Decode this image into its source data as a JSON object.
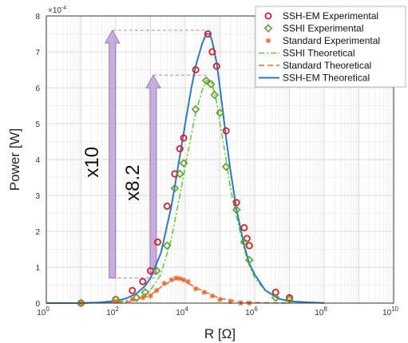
{
  "chart_data": {
    "type": "scatter",
    "xlabel": "R [Ω]",
    "ylabel": "Power [W]",
    "x_scale": "log",
    "xlim": [
      1,
      10000000000
    ],
    "ylim": [
      0,
      0.0008
    ],
    "grid": true,
    "legend_position": "top-right",
    "x_ticks": [
      {
        "value": 1,
        "base": "10",
        "exp": "0"
      },
      {
        "value": 100,
        "base": "10",
        "exp": "2"
      },
      {
        "value": 10000,
        "base": "10",
        "exp": "4"
      },
      {
        "value": 1000000,
        "base": "10",
        "exp": "6"
      },
      {
        "value": 100000000,
        "base": "10",
        "exp": "8"
      },
      {
        "value": 10000000000,
        "base": "10",
        "exp": "10"
      }
    ],
    "y_ticks": [
      {
        "value": 0,
        "label": "0"
      },
      {
        "value": 0.0001,
        "label": "1"
      },
      {
        "value": 0.0002,
        "label": "2"
      },
      {
        "value": 0.0003,
        "label": "3"
      },
      {
        "value": 0.0004,
        "label": "4"
      },
      {
        "value": 0.0005,
        "label": "5"
      },
      {
        "value": 0.0006,
        "label": "6"
      },
      {
        "value": 0.0007,
        "label": "7"
      },
      {
        "value": 0.0008,
        "label": "8"
      }
    ],
    "y_multiplier": {
      "base": "×10",
      "exp": "-4"
    },
    "annotations": [
      {
        "text": "x10",
        "from": 7e-05,
        "to": 0.00076,
        "x": 80
      },
      {
        "text": "x8.2",
        "from": 8e-05,
        "to": 0.000635,
        "x": 1200
      }
    ],
    "series": [
      {
        "name": "SSH-EM Experimental",
        "kind": "markers",
        "marker": "circle",
        "color": "#e0191f",
        "points": [
          [
            10,
            0.0
          ],
          [
            100,
            1e-05
          ],
          [
            300,
            3.5e-05
          ],
          [
            600,
            6e-05
          ],
          [
            1000,
            9e-05
          ],
          [
            1600,
            0.00017
          ],
          [
            3000,
            0.00027
          ],
          [
            5000,
            0.00036
          ],
          [
            7000,
            0.00043
          ],
          [
            9000,
            0.00046
          ],
          [
            20000,
            0.00065
          ],
          [
            45000,
            0.00075
          ],
          [
            60000,
            0.0007
          ],
          [
            80000,
            0.00066
          ],
          [
            150000,
            0.00048
          ],
          [
            300000,
            0.00028
          ],
          [
            500000,
            0.00021
          ],
          [
            600000,
            0.00018
          ],
          [
            700000,
            0.00016
          ],
          [
            4000000,
            3e-05
          ],
          [
            10000000,
            1.5e-05
          ]
        ]
      },
      {
        "name": "SSHI Experimental",
        "kind": "markers",
        "marker": "diamond",
        "color": "#5fa030",
        "points": [
          [
            10,
            0.0
          ],
          [
            100,
            1e-05
          ],
          [
            400,
            1.5e-05
          ],
          [
            700,
            3e-05
          ],
          [
            1500,
            9e-05
          ],
          [
            3000,
            0.00016
          ],
          [
            5000,
            0.00032
          ],
          [
            7000,
            0.00036
          ],
          [
            9000,
            0.00039
          ],
          [
            20000,
            0.00054
          ],
          [
            40000,
            0.00062
          ],
          [
            55000,
            0.00061
          ],
          [
            70000,
            0.00058
          ],
          [
            100000,
            0.00053
          ],
          [
            150000,
            0.00038
          ],
          [
            300000,
            0.00026
          ],
          [
            500000,
            0.00017
          ],
          [
            700000,
            0.00012
          ],
          [
            4000000,
            1.5e-05
          ],
          [
            10000000,
            1e-05
          ]
        ]
      },
      {
        "name": "Standard Experimental",
        "kind": "markers",
        "marker": "star",
        "color": "#ea6a2f",
        "points": [
          [
            10,
            0.0
          ],
          [
            100,
            5e-06
          ],
          [
            300,
            1e-05
          ],
          [
            600,
            1.5e-05
          ],
          [
            1000,
            2e-05
          ],
          [
            1500,
            3.5e-05
          ],
          [
            2500,
            5.5e-05
          ],
          [
            4000,
            6.5e-05
          ],
          [
            5500,
            7e-05
          ],
          [
            7000,
            6.8e-05
          ],
          [
            9000,
            6.5e-05
          ],
          [
            12000,
            6e-05
          ],
          [
            20000,
            4e-05
          ],
          [
            35000,
            3e-05
          ],
          [
            60000,
            2e-05
          ],
          [
            100000,
            1e-05
          ],
          [
            200000,
            5e-06
          ],
          [
            400000,
            0.0
          ],
          [
            700000,
            0.0
          ]
        ]
      },
      {
        "name": "SSHI Theoretical",
        "kind": "line",
        "dash": "7,3,2,3",
        "color": "#5bd22e",
        "points": [
          [
            1,
            0.0
          ],
          [
            10,
            1e-07
          ],
          [
            30,
            5e-07
          ],
          [
            100,
            3e-06
          ],
          [
            200,
            7e-06
          ],
          [
            400,
            1.4e-05
          ],
          [
            700,
            2.5e-05
          ],
          [
            1000,
            3.6e-05
          ],
          [
            2000,
            8e-05
          ],
          [
            4000,
            0.00018
          ],
          [
            7000,
            0.0003
          ],
          [
            10000,
            0.00038
          ],
          [
            15000,
            0.00047
          ],
          [
            20000,
            0.00053
          ],
          [
            30000,
            0.00059
          ],
          [
            40000,
            0.00062
          ],
          [
            50000,
            0.00062
          ],
          [
            60000,
            0.00061
          ],
          [
            80000,
            0.00056
          ],
          [
            100000,
            0.0005
          ],
          [
            150000,
            0.0004
          ],
          [
            200000,
            0.00032
          ],
          [
            300000,
            0.00024
          ],
          [
            500000,
            0.00015
          ],
          [
            700000,
            0.000105
          ],
          [
            1000000,
            7e-05
          ],
          [
            2000000,
            3.5e-05
          ],
          [
            5000000,
            1.2e-05
          ],
          [
            10000000,
            5e-06
          ],
          [
            100000000,
            1e-07
          ]
        ]
      },
      {
        "name": "Standard Theoretical",
        "kind": "line",
        "dash": "7,4",
        "color": "#ea6a2f",
        "points": [
          [
            1,
            0.0
          ],
          [
            100,
            1e-06
          ],
          [
            300,
            5e-06
          ],
          [
            1000,
            2.2e-05
          ],
          [
            2000,
            4.5e-05
          ],
          [
            4000,
            6.2e-05
          ],
          [
            6000,
            6.8e-05
          ],
          [
            8000,
            6.6e-05
          ],
          [
            10000,
            6e-05
          ],
          [
            15000,
            5e-05
          ],
          [
            30000,
            3.5e-05
          ],
          [
            60000,
            2.2e-05
          ],
          [
            100000,
            1.3e-05
          ],
          [
            300000,
            5e-06
          ],
          [
            1000000,
            1.5e-06
          ],
          [
            10000000,
            0.0
          ]
        ]
      },
      {
        "name": "SSH-EM Theoretical",
        "kind": "line",
        "dash": "",
        "color": "#2a7ac2",
        "points": [
          [
            1,
            0.0
          ],
          [
            10,
            2e-07
          ],
          [
            30,
            1.5e-06
          ],
          [
            100,
            6e-06
          ],
          [
            200,
            1.3e-05
          ],
          [
            400,
            2.7e-05
          ],
          [
            700,
            4.8e-05
          ],
          [
            1000,
            7e-05
          ],
          [
            2000,
            0.00014
          ],
          [
            4000,
            0.00027
          ],
          [
            7000,
            0.00041
          ],
          [
            10000,
            0.0005
          ],
          [
            15000,
            0.0006
          ],
          [
            20000,
            0.00066
          ],
          [
            30000,
            0.00072
          ],
          [
            40000,
            0.00075
          ],
          [
            50000,
            0.00075
          ],
          [
            60000,
            0.00073
          ],
          [
            80000,
            0.00067
          ],
          [
            100000,
            0.0006
          ],
          [
            150000,
            0.00046
          ],
          [
            200000,
            0.00037
          ],
          [
            300000,
            0.00026
          ],
          [
            500000,
            0.00016
          ],
          [
            700000,
            0.00011
          ],
          [
            1000000,
            8e-05
          ],
          [
            2000000,
            3.6e-05
          ],
          [
            5000000,
            1.2e-05
          ],
          [
            10000000,
            5e-06
          ],
          [
            100000000,
            2e-07
          ]
        ]
      }
    ],
    "legend_order": [
      0,
      1,
      2,
      3,
      4,
      5
    ]
  }
}
